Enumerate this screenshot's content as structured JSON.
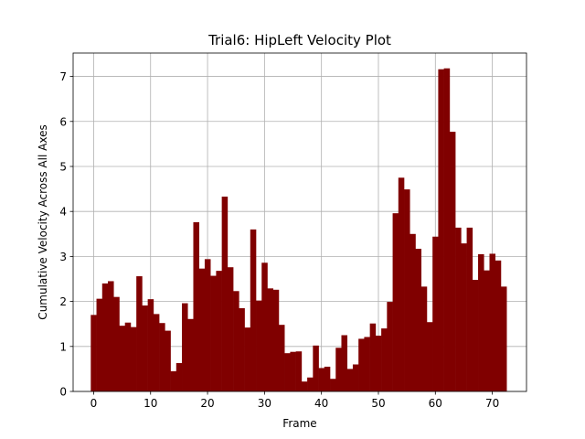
{
  "chart_data": {
    "type": "bar",
    "title": "Trial6: HipLeft Velocity Plot",
    "xlabel": "Frame",
    "ylabel": "Cumulative Velocity Across All Axes",
    "xlim": [
      -3.6,
      76.0
    ],
    "ylim": [
      0,
      7.52
    ],
    "xticks": [
      0,
      10,
      20,
      30,
      40,
      50,
      60,
      70
    ],
    "yticks": [
      0,
      1,
      2,
      3,
      4,
      5,
      6,
      7
    ],
    "grid": true,
    "bar_color": "#800000",
    "x": [
      0,
      1,
      2,
      3,
      4,
      5,
      6,
      7,
      8,
      9,
      10,
      11,
      12,
      13,
      14,
      15,
      16,
      17,
      18,
      19,
      20,
      21,
      22,
      23,
      24,
      25,
      26,
      27,
      28,
      29,
      30,
      31,
      32,
      33,
      34,
      35,
      36,
      37,
      38,
      39,
      40,
      41,
      42,
      43,
      44,
      45,
      46,
      47,
      48,
      49,
      50,
      51,
      52,
      53,
      54,
      55,
      56,
      57,
      58,
      59,
      60,
      61,
      62,
      63,
      64,
      65,
      66,
      67,
      68,
      69,
      70,
      71,
      72
    ],
    "values": [
      1.7,
      2.06,
      2.4,
      2.45,
      2.1,
      1.46,
      1.53,
      1.43,
      2.56,
      1.91,
      2.05,
      1.72,
      1.52,
      1.35,
      0.45,
      0.63,
      1.96,
      1.61,
      3.76,
      2.73,
      2.94,
      2.57,
      2.68,
      4.33,
      2.76,
      2.23,
      1.85,
      1.42,
      3.6,
      2.02,
      2.86,
      2.29,
      2.26,
      1.48,
      0.85,
      0.88,
      0.89,
      0.22,
      0.31,
      1.02,
      0.52,
      0.55,
      0.28,
      0.97,
      1.25,
      0.5,
      0.6,
      1.17,
      1.21,
      1.51,
      1.24,
      1.4,
      1.99,
      3.96,
      4.75,
      4.49,
      3.5,
      3.17,
      2.33,
      1.54,
      3.44,
      7.16,
      7.18,
      5.77,
      3.64,
      3.29,
      3.64,
      2.48,
      3.05,
      2.69,
      3.06,
      2.91,
      2.33
    ]
  }
}
